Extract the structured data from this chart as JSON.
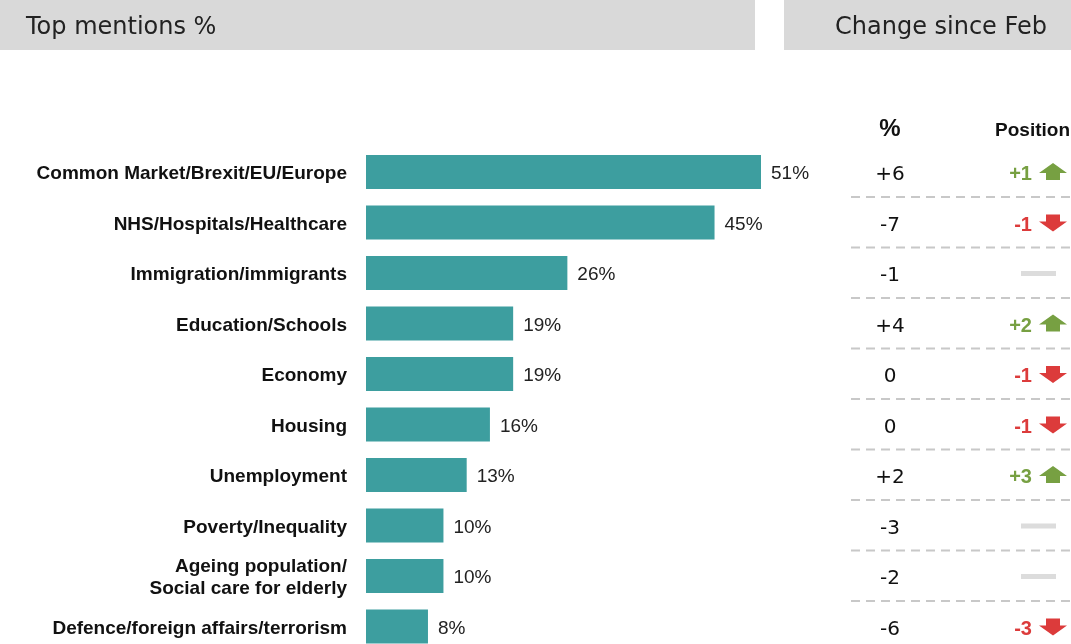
{
  "chart_data": [
    {
      "type": "bar",
      "title": "Top mentions %",
      "orientation": "horizontal",
      "color": "#3d9e9f",
      "categories": [
        "Common Market/Brexit/EU/Europe",
        "NHS/Hospitals/Healthcare",
        "Immigration/immigrants",
        "Education/Schools",
        "Economy",
        "Housing",
        "Unemployment",
        "Poverty/Inequality",
        "Ageing population/ Social care for elderly",
        "Defence/foreign affairs/terrorism"
      ],
      "values": [
        51,
        45,
        26,
        19,
        19,
        16,
        13,
        10,
        10,
        8
      ],
      "value_labels": [
        "51%",
        "45%",
        "26%",
        "19%",
        "19%",
        "16%",
        "13%",
        "10%",
        "10%",
        "8%"
      ]
    },
    {
      "type": "other",
      "title": "Change since Feb",
      "categories": [
        "%",
        "Position"
      ],
      "cell_labels": [
        [
          "+6",
          "+1"
        ],
        [
          "-7",
          "-1"
        ],
        [
          "-1",
          null
        ],
        [
          "+4",
          "+2"
        ],
        [
          "0",
          "-1"
        ],
        [
          "0",
          "-1"
        ],
        [
          "+2",
          "+3"
        ],
        [
          "-3",
          null
        ],
        [
          "-2",
          null
        ],
        [
          "-6",
          "-3"
        ]
      ]
    }
  ]
}
